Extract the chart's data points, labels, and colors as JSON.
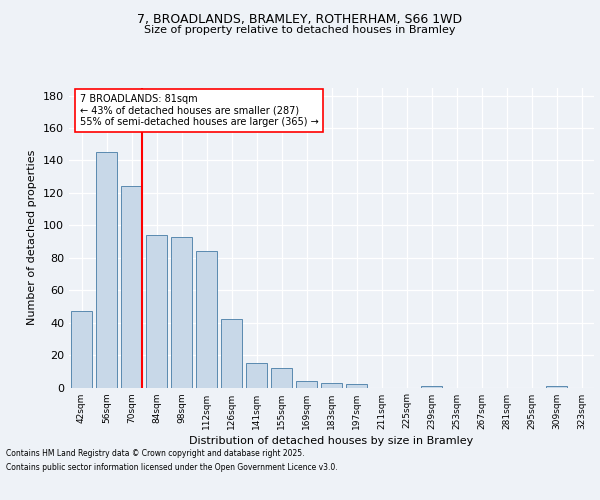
{
  "title1": "7, BROADLANDS, BRAMLEY, ROTHERHAM, S66 1WD",
  "title2": "Size of property relative to detached houses in Bramley",
  "xlabel": "Distribution of detached houses by size in Bramley",
  "ylabel": "Number of detached properties",
  "bin_labels": [
    "42sqm",
    "56sqm",
    "70sqm",
    "84sqm",
    "98sqm",
    "112sqm",
    "126sqm",
    "141sqm",
    "155sqm",
    "169sqm",
    "183sqm",
    "197sqm",
    "211sqm",
    "225sqm",
    "239sqm",
    "253sqm",
    "267sqm",
    "281sqm",
    "295sqm",
    "309sqm",
    "323sqm"
  ],
  "bar_values": [
    47,
    145,
    124,
    94,
    93,
    84,
    42,
    15,
    12,
    4,
    3,
    2,
    0,
    0,
    1,
    0,
    0,
    0,
    0,
    1,
    0
  ],
  "bar_color": "#c8d8e8",
  "bar_edge_color": "#5a8ab0",
  "background_color": "#eef2f7",
  "grid_color": "#ffffff",
  "vline_color": "red",
  "annotation_text": "7 BROADLANDS: 81sqm\n← 43% of detached houses are smaller (287)\n55% of semi-detached houses are larger (365) →",
  "annotation_box_color": "white",
  "annotation_box_edge": "red",
  "ylim": [
    0,
    185
  ],
  "yticks": [
    0,
    20,
    40,
    60,
    80,
    100,
    120,
    140,
    160,
    180
  ],
  "footer_line1": "Contains HM Land Registry data © Crown copyright and database right 2025.",
  "footer_line2": "Contains public sector information licensed under the Open Government Licence v3.0."
}
